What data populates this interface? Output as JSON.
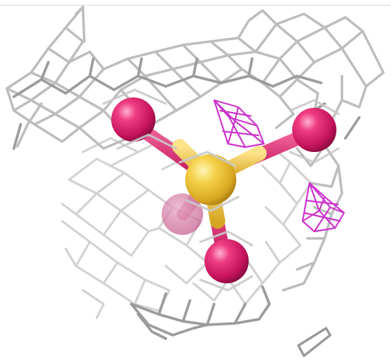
{
  "scene": {
    "background": "#ffffff",
    "subject": "sulfate-ion-in-electron-density-mesh",
    "colors": {
      "mesh_light": "#c8c8c8",
      "mesh_dark": "#8a8a8a",
      "sulfur": "#f3cc3e",
      "oxygen": "#e0266b",
      "difference_density": "#cc33cc"
    }
  }
}
